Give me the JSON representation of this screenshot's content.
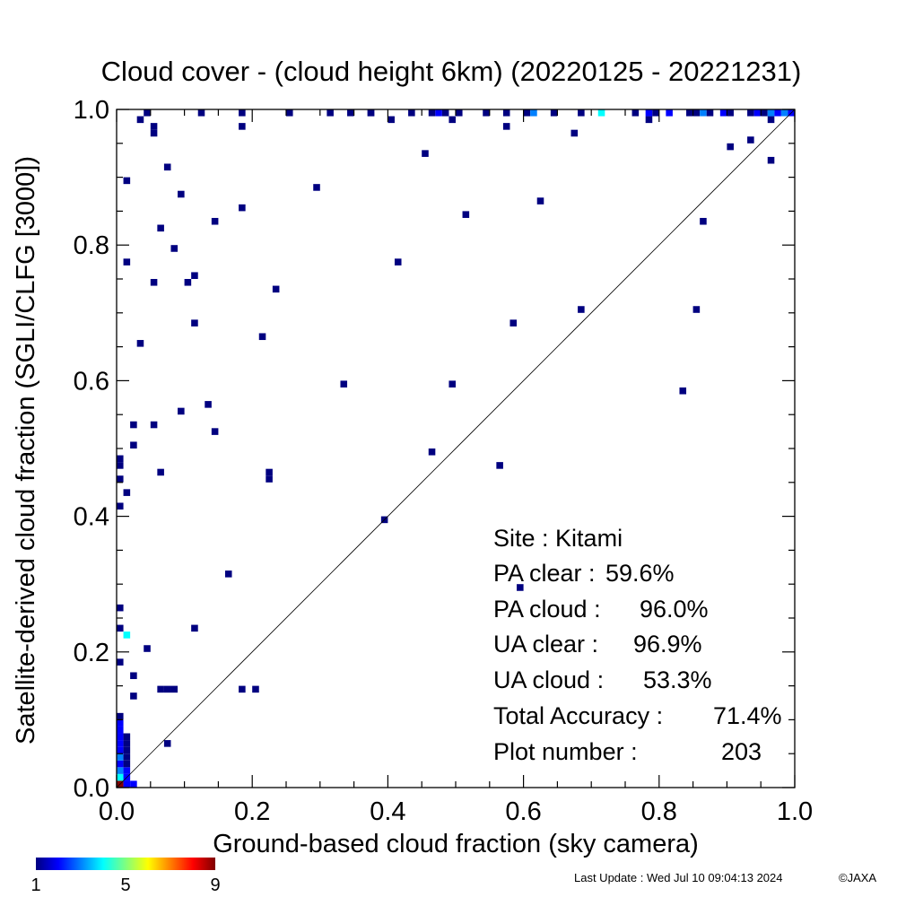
{
  "chart_data": {
    "type": "heatmap",
    "title": "Cloud cover - (cloud height 6km)  (20220125 - 20221231)",
    "xlabel": "Ground-based cloud fraction (sky camera)",
    "ylabel": "Satellite-derived cloud fraction (SGLI/CLFG [3000])",
    "xlim": [
      0,
      1
    ],
    "ylim": [
      0,
      1
    ],
    "x_ticks": [
      "0.0",
      "0.2",
      "0.4",
      "0.6",
      "0.8",
      "1.0"
    ],
    "y_ticks": [
      "0.0",
      "0.2",
      "0.4",
      "0.6",
      "0.8",
      "1.0"
    ],
    "diagonal_line": true,
    "grid": false,
    "stats": [
      {
        "label": "Site :",
        "value": "Kitami"
      },
      {
        "label": "PA clear :",
        "value": "59.6%"
      },
      {
        "label": "PA cloud :",
        "value": "96.0%"
      },
      {
        "label": "UA clear :",
        "value": "96.9%"
      },
      {
        "label": "UA cloud :",
        "value": "53.3%"
      },
      {
        "label": "Total Accuracy :",
        "value": "71.4%"
      },
      {
        "label": "Plot number :",
        "value": "203"
      }
    ],
    "colorbar": {
      "min": 1,
      "max": 9,
      "ticks": [
        "1",
        "5",
        "9"
      ]
    },
    "points": [
      [
        0.0,
        0.0,
        9
      ],
      [
        0.01,
        0.0,
        2
      ],
      [
        0.02,
        0.0,
        2
      ],
      [
        0.0,
        0.01,
        4
      ],
      [
        0.01,
        0.01,
        2
      ],
      [
        0.0,
        0.02,
        3
      ],
      [
        0.01,
        0.02,
        2
      ],
      [
        0.0,
        0.03,
        2
      ],
      [
        0.01,
        0.03,
        1
      ],
      [
        0.0,
        0.04,
        3
      ],
      [
        0.01,
        0.04,
        1
      ],
      [
        0.0,
        0.05,
        2
      ],
      [
        0.01,
        0.05,
        1
      ],
      [
        0.0,
        0.06,
        2
      ],
      [
        0.0,
        0.07,
        2
      ],
      [
        0.01,
        0.07,
        1
      ],
      [
        0.0,
        0.08,
        2
      ],
      [
        0.0,
        0.09,
        2
      ],
      [
        0.0,
        0.1,
        1
      ],
      [
        0.01,
        0.06,
        1
      ],
      [
        0.07,
        0.06,
        1
      ],
      [
        0.0,
        0.18,
        1
      ],
      [
        0.0,
        0.23,
        1
      ],
      [
        0.01,
        0.22,
        4
      ],
      [
        0.0,
        0.26,
        1
      ],
      [
        0.06,
        0.14,
        1
      ],
      [
        0.02,
        0.13,
        1
      ],
      [
        0.02,
        0.16,
        1
      ],
      [
        0.07,
        0.14,
        1
      ],
      [
        0.08,
        0.14,
        1
      ],
      [
        0.04,
        0.2,
        1
      ],
      [
        0.11,
        0.23,
        1
      ],
      [
        0.18,
        0.14,
        1
      ],
      [
        0.2,
        0.14,
        1
      ],
      [
        0.16,
        0.31,
        1
      ],
      [
        0.0,
        0.41,
        1
      ],
      [
        0.01,
        0.43,
        1
      ],
      [
        0.0,
        0.45,
        1
      ],
      [
        0.0,
        0.47,
        1
      ],
      [
        0.0,
        0.48,
        1
      ],
      [
        0.02,
        0.5,
        1
      ],
      [
        0.02,
        0.53,
        1
      ],
      [
        0.05,
        0.53,
        1
      ],
      [
        0.06,
        0.46,
        1
      ],
      [
        0.09,
        0.55,
        1
      ],
      [
        0.13,
        0.56,
        1
      ],
      [
        0.14,
        0.52,
        1
      ],
      [
        0.22,
        0.45,
        1
      ],
      [
        0.22,
        0.46,
        1
      ],
      [
        0.33,
        0.59,
        1
      ],
      [
        0.39,
        0.39,
        1
      ],
      [
        0.46,
        0.49,
        1
      ],
      [
        0.49,
        0.59,
        1
      ],
      [
        0.56,
        0.47,
        1
      ],
      [
        0.59,
        0.29,
        1
      ],
      [
        0.03,
        0.65,
        1
      ],
      [
        0.11,
        0.68,
        1
      ],
      [
        0.21,
        0.66,
        1
      ],
      [
        0.05,
        0.74,
        1
      ],
      [
        0.1,
        0.74,
        1
      ],
      [
        0.11,
        0.75,
        1
      ],
      [
        0.23,
        0.73,
        1
      ],
      [
        0.01,
        0.77,
        1
      ],
      [
        0.06,
        0.82,
        1
      ],
      [
        0.08,
        0.79,
        1
      ],
      [
        0.14,
        0.83,
        1
      ],
      [
        0.18,
        0.85,
        1
      ],
      [
        0.09,
        0.87,
        1
      ],
      [
        0.01,
        0.89,
        1
      ],
      [
        0.07,
        0.91,
        1
      ],
      [
        0.29,
        0.88,
        1
      ],
      [
        0.45,
        0.93,
        1
      ],
      [
        0.03,
        0.98,
        1
      ],
      [
        0.05,
        0.96,
        1
      ],
      [
        0.05,
        0.97,
        1
      ],
      [
        0.18,
        0.97,
        1
      ],
      [
        0.25,
        0.99,
        1
      ],
      [
        0.37,
        0.99,
        1
      ],
      [
        0.41,
        0.77,
        1
      ],
      [
        0.51,
        0.84,
        1
      ],
      [
        0.58,
        0.68,
        1
      ],
      [
        0.62,
        0.86,
        1
      ],
      [
        0.68,
        0.7,
        1
      ],
      [
        0.57,
        0.97,
        1
      ],
      [
        0.67,
        0.96,
        1
      ],
      [
        0.49,
        0.98,
        1
      ],
      [
        0.4,
        0.98,
        1
      ],
      [
        0.78,
        0.98,
        1
      ],
      [
        0.83,
        0.58,
        1
      ],
      [
        0.85,
        0.7,
        1
      ],
      [
        0.86,
        0.83,
        1
      ],
      [
        0.9,
        0.94,
        1
      ],
      [
        0.93,
        0.95,
        1
      ],
      [
        0.96,
        0.92,
        1
      ],
      [
        0.96,
        0.98,
        1
      ],
      [
        0.84,
        0.99,
        1
      ],
      [
        0.04,
        1.0,
        1
      ],
      [
        0.12,
        1.0,
        1
      ],
      [
        0.18,
        1.0,
        1
      ],
      [
        0.31,
        1.0,
        1
      ],
      [
        0.34,
        1.0,
        1
      ],
      [
        0.37,
        1.0,
        1
      ],
      [
        0.43,
        1.0,
        1
      ],
      [
        0.46,
        1.0,
        1
      ],
      [
        0.47,
        1.0,
        2
      ],
      [
        0.48,
        1.0,
        1
      ],
      [
        0.5,
        1.0,
        1
      ],
      [
        0.54,
        1.0,
        1
      ],
      [
        0.57,
        1.0,
        1
      ],
      [
        0.6,
        1.0,
        1
      ],
      [
        0.61,
        1.0,
        3
      ],
      [
        0.64,
        1.0,
        1
      ],
      [
        0.68,
        1.0,
        1
      ],
      [
        0.71,
        1.0,
        4
      ],
      [
        0.76,
        1.0,
        1
      ],
      [
        0.78,
        1.0,
        2
      ],
      [
        0.79,
        1.0,
        1
      ],
      [
        0.81,
        1.0,
        2
      ],
      [
        0.85,
        1.0,
        1
      ],
      [
        0.86,
        1.0,
        3
      ],
      [
        0.87,
        1.0,
        1
      ],
      [
        0.89,
        1.0,
        2
      ],
      [
        0.9,
        1.0,
        1
      ],
      [
        0.93,
        1.0,
        1
      ],
      [
        0.94,
        1.0,
        2
      ],
      [
        0.95,
        1.0,
        1
      ],
      [
        0.96,
        1.0,
        3
      ],
      [
        0.97,
        1.0,
        2
      ],
      [
        0.98,
        1.0,
        3
      ],
      [
        0.99,
        1.0,
        2
      ]
    ]
  },
  "footer": {
    "last_update": "Last Update : Wed Jul 10 09:04:13 2024",
    "credit": "©JAXA"
  }
}
